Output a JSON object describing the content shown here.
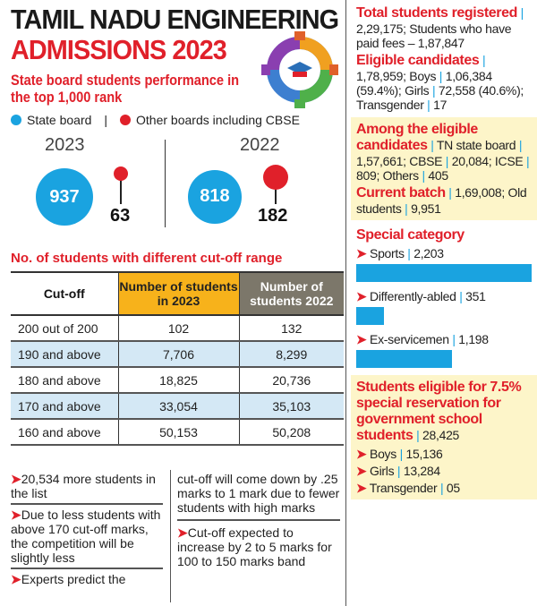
{
  "header": {
    "title_line1": "TAMIL NADU ENGINEERING",
    "title_line2": "ADMISSIONS 2023",
    "icon": "gear-graduation-cap-icon"
  },
  "performance": {
    "subtitle": "State board students performance in the top 1,000 rank",
    "legend": [
      {
        "label": "State board",
        "color": "#1aa3e0"
      },
      {
        "label": "Other boards including CBSE",
        "color": "#e0202a"
      }
    ],
    "legend_sep": "|"
  },
  "chart_data": [
    {
      "type": "bubble",
      "title": "State board students performance in the top 1,000 rank",
      "categories": [
        "2023",
        "2022"
      ],
      "series": [
        {
          "name": "State board",
          "values": [
            937,
            818
          ]
        },
        {
          "name": "Other boards including CBSE",
          "values": [
            63,
            182
          ]
        }
      ]
    },
    {
      "type": "table",
      "title": "No. of students with different cut-off range",
      "columns": [
        "Cut-off",
        "Number of students in 2023",
        "Number of students 2022"
      ],
      "rows": [
        [
          "200 out of 200",
          "102",
          "132"
        ],
        [
          "190 and above",
          "7,706",
          "8,299"
        ],
        [
          "180 and above",
          "18,825",
          "20,736"
        ],
        [
          "170 and above",
          "33,054",
          "35,103"
        ],
        [
          "160 and above",
          "50,153",
          "50,208"
        ]
      ]
    },
    {
      "type": "bar",
      "title": "Special category",
      "categories": [
        "Sports",
        "Differently-abled",
        "Ex-servicemen"
      ],
      "values": [
        2203,
        351,
        1198
      ],
      "labels": [
        "2,203",
        "351",
        "1,198"
      ],
      "color": "#1aa3e0"
    }
  ],
  "notes_left": [
    "20,534 more students in the list",
    "Due to less students with above 170 cut-off marks, the competition will be slightly less",
    "Experts predict the"
  ],
  "notes_right": [
    "cut-off will come down by .25 marks to 1 mark due to fewer students with high marks",
    "Cut-off expected to increase by 2 to 5 marks for 100 to 150 marks band"
  ],
  "right": {
    "total_h": "Total students registered",
    "total_t": "2,29,175; Students who have paid fees – 1,87,847",
    "elig_h": "Eligible candidates",
    "elig_t1": "1,78,959;  Boys ",
    "elig_v1": "1,06,384 (59.4%); Girls ",
    "elig_v2": "72,558 (40.6%); Transgender ",
    "elig_v3": "17",
    "among_h": "Among the eligible candidates",
    "among_t1": "TN state board ",
    "among_t2": "1,57,661; CBSE ",
    "among_t3": "20,084; ICSE ",
    "among_t4": "809; Others ",
    "among_t5": "405",
    "batch_h": "Current batch",
    "batch_t1": "1,69,008; Old students ",
    "batch_t2": "9,951",
    "special_h": "Special category",
    "res_h": "Students eligible for 7.5% special reservation for government school students",
    "res_total": "28,425",
    "res_items": [
      {
        "label": "Boys",
        "value": "15,136"
      },
      {
        "label": "Girls",
        "value": "13,284"
      },
      {
        "label": "Transgender",
        "value": "05"
      }
    ]
  }
}
